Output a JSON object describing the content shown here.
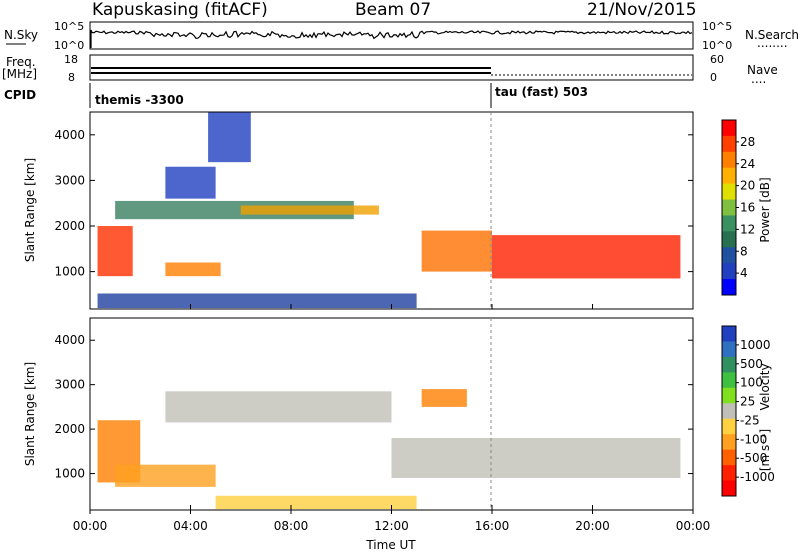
{
  "header": {
    "station": "Kapuskasing (fitACF)",
    "beam": "Beam 07",
    "date": "21/Nov/2015"
  },
  "nsky_panel": {
    "left_label": "N.Sky",
    "right_label": "N.Search",
    "right_dots": "........",
    "left_ticks": [
      "10^5",
      "10^0"
    ],
    "right_ticks": [
      "10^5",
      "10^0"
    ]
  },
  "freq_panel": {
    "label_line1": "Freq.",
    "label_line2": "[MHz]",
    "right_label": "Nave",
    "right_dots": "....",
    "left_ticks": [
      "18",
      "8"
    ],
    "right_ticks": [
      "60",
      "0"
    ]
  },
  "cpid": {
    "label": "CPID",
    "segment1": "themis -3300",
    "segment2": "tau (fast) 503",
    "switch_time": 16
  },
  "chart_data": [
    {
      "type": "heatmap",
      "parameter": "power",
      "ylabel": "Slant Range [km]",
      "yticks": [
        1000,
        2000,
        3000,
        4000
      ],
      "ylim": [
        180,
        4500
      ],
      "xlim": [
        0,
        24
      ],
      "colorbar": {
        "label": "Power [dB]",
        "ticks": [
          "28",
          "24",
          "20",
          "16",
          "12",
          "8",
          "4"
        ],
        "colors": [
          "#ff0000",
          "#ff4000",
          "#ff8000",
          "#ffb000",
          "#e0e000",
          "#80c040",
          "#3a9060",
          "#287050",
          "#2050a0",
          "#2040c0",
          "#0000ff"
        ]
      },
      "features": [
        {
          "t0": 0.3,
          "t1": 13.0,
          "r0": 200,
          "r1": 520,
          "color": "#2040a0"
        },
        {
          "t0": 1.0,
          "t1": 10.5,
          "r0": 2150,
          "r1": 2550,
          "color": "#3a8060"
        },
        {
          "t0": 6.0,
          "t1": 11.5,
          "r0": 2250,
          "r1": 2450,
          "color": "#f0a000"
        },
        {
          "t0": 0.3,
          "t1": 1.7,
          "r0": 900,
          "r1": 2000,
          "color": "#ff3000"
        },
        {
          "t0": 13.2,
          "t1": 16.0,
          "r0": 1000,
          "r1": 1900,
          "color": "#ff7000"
        },
        {
          "t0": 16.0,
          "t1": 23.5,
          "r0": 850,
          "r1": 1800,
          "color": "#ff2000"
        },
        {
          "t0": 4.7,
          "t1": 6.4,
          "r0": 3400,
          "r1": 4500,
          "color": "#2040c0"
        },
        {
          "t0": 3.0,
          "t1": 5.0,
          "r0": 2600,
          "r1": 3300,
          "color": "#2040c0"
        },
        {
          "t0": 3.0,
          "t1": 5.2,
          "r0": 900,
          "r1": 1200,
          "color": "#ff8000"
        }
      ]
    },
    {
      "type": "heatmap",
      "parameter": "velocity",
      "ylabel": "Slant Range [km]",
      "yticks": [
        1000,
        2000,
        3000,
        4000
      ],
      "ylim": [
        180,
        4500
      ],
      "xlim": [
        0,
        24
      ],
      "xlabel": "Time UT",
      "xticks": [
        "00:00",
        "04:00",
        "08:00",
        "12:00",
        "16:00",
        "20:00",
        "00:00"
      ],
      "colorbar": {
        "label": "Velocity",
        "unit": "[m s⁻¹]",
        "ticks": [
          "1000",
          "500",
          "100",
          "25",
          "-25",
          "-100",
          "-500",
          "-1000"
        ],
        "colors": [
          "#2040c0",
          "#3070c0",
          "#309060",
          "#40c040",
          "#80e020",
          "#c0c0b8",
          "#ffd040",
          "#ffa020",
          "#ff6000",
          "#ff2000",
          "#ff0000"
        ]
      },
      "features": [
        {
          "t0": 3.0,
          "t1": 12.0,
          "r0": 2150,
          "r1": 2850,
          "color": "#c0c0b8"
        },
        {
          "t0": 12.0,
          "t1": 23.5,
          "r0": 900,
          "r1": 1800,
          "color": "#c0c0b8"
        },
        {
          "t0": 0.3,
          "t1": 2.0,
          "r0": 800,
          "r1": 2200,
          "color": "#ff8000"
        },
        {
          "t0": 1.0,
          "t1": 5.0,
          "r0": 700,
          "r1": 1200,
          "color": "#ffa020"
        },
        {
          "t0": 5.0,
          "t1": 13.0,
          "r0": 200,
          "r1": 500,
          "color": "#ffd040"
        },
        {
          "t0": 13.2,
          "t1": 15.0,
          "r0": 2500,
          "r1": 2900,
          "color": "#ff8000"
        }
      ]
    }
  ]
}
